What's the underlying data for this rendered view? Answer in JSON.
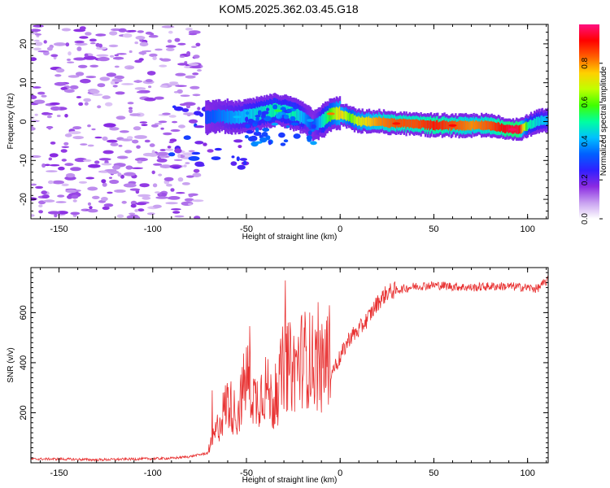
{
  "title": "KOM5.2025.362.03.45.G18",
  "chart_data": [
    {
      "type": "heatmap",
      "name": "spectrogram",
      "xlabel": "Height of straight line (km)",
      "ylabel": "Frequency (Hz)",
      "xlim": [
        -165,
        111
      ],
      "ylim": [
        -25,
        25
      ],
      "xticks": [
        -150,
        -100,
        -50,
        0,
        50,
        100
      ],
      "yticks": [
        -20,
        -10,
        0,
        10,
        20
      ],
      "colorbar": {
        "label": "Normalized spectral amplitude",
        "range": [
          0,
          1
        ],
        "ticks": [
          "0.0",
          "0.2",
          "0.4",
          "0.6",
          "0.8"
        ],
        "tick_values": [
          0,
          0.2,
          0.4,
          0.6,
          0.8
        ],
        "colormap": [
          "#ffffff",
          "#c8a0f0",
          "#8a2be2",
          "#3020ff",
          "#0060ff",
          "#00c0ff",
          "#00ffa0",
          "#40ff00",
          "#c0ff00",
          "#ffd000",
          "#ff6000",
          "#ff0000",
          "#ff1080"
        ]
      },
      "ridge": {
        "description_x": [
          -72,
          -65,
          -55,
          -45,
          -35,
          -30,
          -25,
          -20,
          -15,
          -10,
          -5,
          0,
          5,
          10,
          20,
          30,
          40,
          50,
          60,
          70,
          80,
          90,
          95,
          100,
          105,
          111
        ],
        "frequency": [
          1,
          1.5,
          1,
          2,
          3,
          2.5,
          2,
          1,
          -1,
          0,
          2,
          2,
          1,
          0,
          0,
          -0.5,
          -0.5,
          -1,
          -1,
          -1,
          -1,
          -2,
          -2,
          -1,
          0,
          0.5
        ],
        "amplitude": [
          0.3,
          0.35,
          0.4,
          0.45,
          0.5,
          0.45,
          0.5,
          0.4,
          0.3,
          0.45,
          0.6,
          0.75,
          0.6,
          0.7,
          0.8,
          0.85,
          0.85,
          0.9,
          0.85,
          0.8,
          0.85,
          0.95,
          0.95,
          0.5,
          0.45,
          0.4
        ]
      }
    },
    {
      "type": "line",
      "name": "snr",
      "xlabel": "Height of straight line (km)",
      "ylabel": "SNR (v/v)",
      "xlim": [
        -165,
        111
      ],
      "ylim": [
        0,
        780
      ],
      "xticks": [
        -150,
        -100,
        -50,
        0,
        50,
        100
      ],
      "yticks": [
        200,
        400,
        600
      ],
      "color": "#e83030",
      "series": [
        {
          "name": "SNR",
          "x": [
            -165,
            -150,
            -130,
            -110,
            -90,
            -80,
            -70,
            -65,
            -60,
            -55,
            -50,
            -45,
            -40,
            -35,
            -30,
            -25,
            -20,
            -15,
            -10,
            -5,
            0,
            5,
            10,
            15,
            20,
            25,
            30,
            40,
            50,
            60,
            70,
            80,
            90,
            100,
            105,
            111
          ],
          "y": [
            15,
            15,
            12,
            15,
            18,
            25,
            40,
            120,
            200,
            150,
            280,
            200,
            250,
            180,
            320,
            300,
            340,
            330,
            300,
            360,
            420,
            500,
            530,
            580,
            640,
            680,
            690,
            705,
            710,
            705,
            700,
            705,
            705,
            700,
            695,
            730
          ]
        }
      ]
    }
  ]
}
